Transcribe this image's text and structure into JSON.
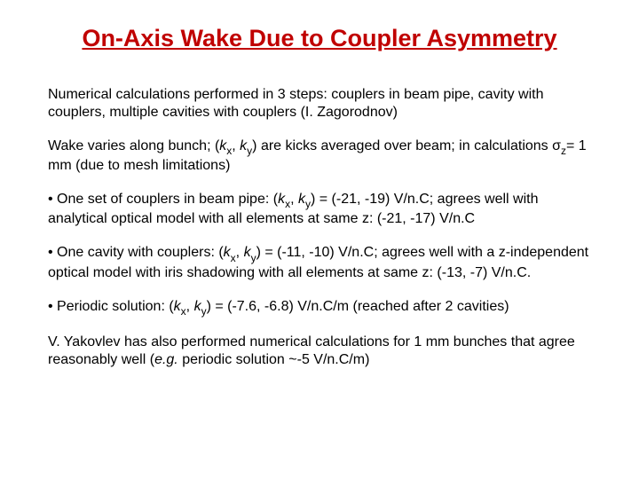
{
  "title_color": "#c00000",
  "body_color": "#000000",
  "title": "On-Axis Wake Due to Coupler Asymmetry",
  "p1_a": "Numerical calculations performed in 3 steps: couplers in beam pipe, cavity with couplers, multiple cavities with couplers (I. Zagorodnov)",
  "p2_a": "Wake varies along bunch; (",
  "p2_kx": "k",
  "p2_x": "x",
  "p2_b": ", ",
  "p2_ky": "k",
  "p2_y": "y",
  "p2_c": ") are kicks averaged over beam; in calculations ",
  "p2_sigma": "σ",
  "p2_z": "z",
  "p2_d": "= 1 mm (due to mesh limitations)",
  "p3_a": "• One set of couplers in beam pipe: (",
  "p3_b": ") = (-21, -19) V/n.C; agrees well with analytical optical model with all elements at same z: (-21, -17) V/n.C",
  "p4_a": "• One cavity with couplers: (",
  "p4_b": ") = (-11, -10) V/n.C; agrees well with a z-independent optical model with iris shadowing with all elements at same z: (-13, -7) V/n.C.",
  "p5_a": "• Periodic solution: (",
  "p5_b": ") = (-7.6, -6.8) V/n.C/m (reached after 2 cavities)",
  "p6_a": "V. Yakovlev has also performed numerical calculations for 1 mm bunches that agree reasonably well (",
  "p6_eg": "e.g.",
  "p6_b": " periodic solution ~-5 V/n.C/m)"
}
